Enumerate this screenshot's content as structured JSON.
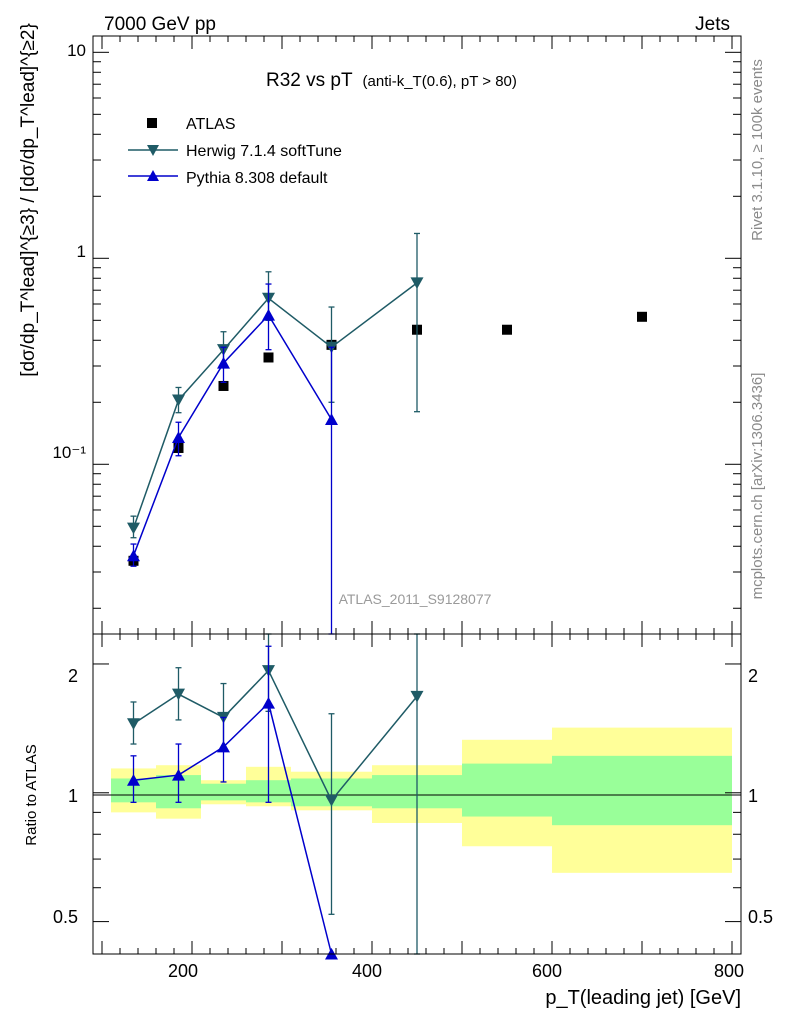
{
  "header": {
    "left": "7000 GeV pp",
    "right": "Jets"
  },
  "side": {
    "rivet": "Rivet 3.1.10, ≥ 100k events",
    "mcplots": "mcplots.cern.ch [arXiv:1306.3436]"
  },
  "chart_data": {
    "type": "scatter",
    "title": "R32 vs pT",
    "title_sub": "(anti-k_T(0.6), pT > 80)",
    "analysis_label": "ATLAS_2011_S9128077",
    "xlabel": "p_T(leading jet) [GeV]",
    "ylabel": "[dσ/dp_T^lead]^{≥3} / [dσ/dp_T^lead]^{≥2}",
    "ratio_ylabel": "Ratio to ATLAS",
    "xlim": [
      90,
      810
    ],
    "ylim": [
      0.015,
      12
    ],
    "y_scale": "log",
    "ratio_ylim": [
      0.42,
      2.35
    ],
    "ratio_y_scale": "log",
    "x_ticks": [
      "200",
      "400",
      "600",
      "800"
    ],
    "y_ticks": [
      "10⁻¹",
      "1",
      "10"
    ],
    "ratio_ticks": [
      "0.5",
      "1",
      "2"
    ],
    "legend_position": "top-left",
    "bins": [
      [
        110,
        160
      ],
      [
        160,
        210
      ],
      [
        210,
        260
      ],
      [
        260,
        310
      ],
      [
        310,
        400
      ],
      [
        400,
        500
      ],
      [
        500,
        600
      ],
      [
        600,
        800
      ]
    ],
    "series": [
      {
        "name": "ATLAS",
        "color": "#000000",
        "marker": "square",
        "x": [
          135,
          185,
          235,
          285,
          355,
          450,
          550,
          700
        ],
        "y": [
          0.034,
          0.12,
          0.24,
          0.33,
          0.38,
          0.45,
          0.45,
          0.52
        ],
        "stat_band": [
          [
            0.95,
            1.08
          ],
          [
            0.92,
            1.1
          ],
          [
            0.96,
            1.05
          ],
          [
            0.95,
            1.07
          ],
          [
            0.93,
            1.08
          ],
          [
            0.92,
            1.1
          ],
          [
            0.88,
            1.17
          ],
          [
            0.84,
            1.22
          ]
        ],
        "total_band": [
          [
            0.9,
            1.14
          ],
          [
            0.87,
            1.16
          ],
          [
            0.94,
            1.07
          ],
          [
            0.93,
            1.15
          ],
          [
            0.91,
            1.12
          ],
          [
            0.85,
            1.16
          ],
          [
            0.75,
            1.33
          ],
          [
            0.65,
            1.42
          ]
        ]
      },
      {
        "name": "Herwig 7.1.4 softTune",
        "color": "#1f5b66",
        "marker": "triangle-down",
        "x": [
          135,
          185,
          235,
          285,
          355,
          450
        ],
        "y": [
          0.049,
          0.205,
          0.36,
          0.64,
          0.37,
          0.76
        ],
        "y_err": [
          [
            0.044,
            0.056
          ],
          [
            0.178,
            0.236
          ],
          [
            0.3,
            0.44
          ],
          [
            0.5,
            0.86
          ],
          [
            0.2,
            0.58
          ],
          [
            0.18,
            1.32
          ]
        ],
        "ratio": [
          1.45,
          1.7,
          1.5,
          1.93,
          0.96,
          1.68
        ],
        "ratio_err": [
          [
            1.3,
            1.63
          ],
          [
            1.48,
            1.96
          ],
          [
            1.25,
            1.8
          ],
          [
            1.55,
            2.35
          ],
          [
            0.52,
            1.53
          ],
          [
            0.3,
            2.4
          ]
        ]
      },
      {
        "name": "Pythia 8.308 default",
        "color": "#0000cc",
        "marker": "triangle-up",
        "x": [
          135,
          185,
          235,
          285,
          355
        ],
        "y": [
          0.036,
          0.135,
          0.31,
          0.53,
          0.165
        ],
        "y_err": [
          [
            0.032,
            0.041
          ],
          [
            0.11,
            0.16
          ],
          [
            0.25,
            0.37
          ],
          [
            0.36,
            0.75
          ],
          [
            0.0001,
            0.37
          ]
        ],
        "ratio": [
          1.07,
          1.1,
          1.28,
          1.62,
          0.42
        ],
        "ratio_err": [
          [
            0.95,
            1.22
          ],
          [
            0.95,
            1.3
          ],
          [
            1.06,
            1.5
          ],
          [
            0.95,
            2.2
          ],
          [
            0.42,
            0.42
          ]
        ]
      }
    ]
  }
}
